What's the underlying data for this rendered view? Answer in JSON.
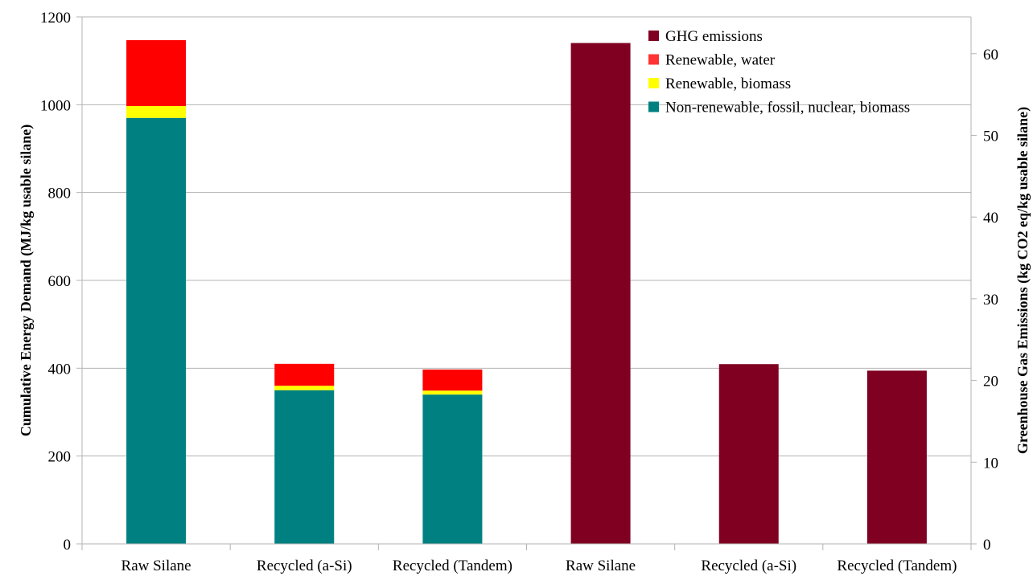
{
  "chart_data": {
    "type": "bar",
    "categories": [
      "Raw Silane",
      "Recycled (a-Si)",
      "Recycled (Tandem)",
      "Raw Silane",
      "Recycled (a-Si)",
      "Recycled (Tandem)"
    ],
    "ylabel": "Cumulative Energy Demand (MJ/kg usable silane)",
    "y2label": "Greenhouse Gas Emissions (kg CO2 eq/kg usable silane)",
    "ylim": [
      0,
      1200
    ],
    "y2lim": [
      0,
      64.5
    ],
    "yticks": [
      0,
      200,
      400,
      600,
      800,
      1000,
      1200
    ],
    "y2ticks": [
      0,
      10,
      20,
      30,
      40,
      50,
      60
    ],
    "grid": true,
    "legend_position": "top-right",
    "series": [
      {
        "name": "Non-renewable, fossil, nuclear, biomass",
        "axis": "left",
        "color": "#008080",
        "values": [
          970,
          350,
          340,
          null,
          null,
          null
        ]
      },
      {
        "name": "Renewable, biomass",
        "axis": "left",
        "color": "#ffff00",
        "values": [
          27,
          10,
          9,
          null,
          null,
          null
        ]
      },
      {
        "name": "Renewable, water",
        "axis": "left",
        "color": "#ff0000",
        "values": [
          150,
          50,
          48,
          null,
          null,
          null
        ]
      },
      {
        "name": "GHG emissions",
        "axis": "right",
        "color": "#7f0021",
        "values": [
          null,
          null,
          null,
          61.3,
          22,
          21.2
        ]
      }
    ],
    "legend_order": [
      "GHG emissions",
      "Renewable, water",
      "Renewable, biomass",
      "Non-renewable, fossil, nuclear, biomass"
    ],
    "legend_swatch_colors": {
      "Renewable, water": "#ff3333"
    }
  }
}
